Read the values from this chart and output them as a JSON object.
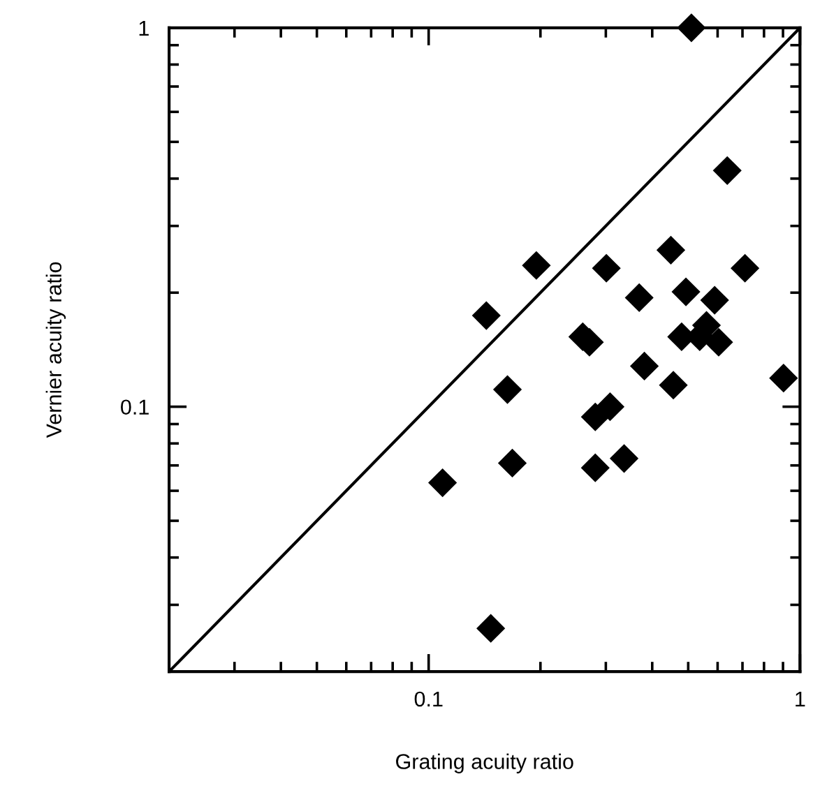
{
  "chart_data": {
    "type": "scatter",
    "xlabel": "Grating acuity ratio",
    "ylabel": "Vernier acuity ratio",
    "log": "xy",
    "xlim": [
      0.02,
      1
    ],
    "ylim": [
      0.02,
      1
    ],
    "xticks": [
      0.1,
      1
    ],
    "yticks": [
      0.1,
      1
    ],
    "grid": false,
    "legend": false,
    "marker": "diamond",
    "series": [
      {
        "type": "line",
        "color": "#000000",
        "x": [
          0.02,
          1
        ],
        "values": [
          0.02,
          1
        ],
        "marker": "none",
        "line_style": "solid"
      },
      {
        "color": "#000000",
        "x": [
          0.195,
          0.301,
          0.449,
          0.711,
          0.143,
          0.369,
          0.493,
          0.589,
          0.26,
          0.271,
          0.48,
          0.56,
          0.537,
          0.604,
          0.381,
          0.456,
          0.903,
          0.163,
          0.281,
          0.308,
          0.168,
          0.281,
          0.336,
          0.109,
          0.147,
          0.51,
          0.637
        ],
        "values": [
          0.236,
          0.232,
          0.259,
          0.232,
          0.174,
          0.194,
          0.201,
          0.191,
          0.153,
          0.148,
          0.153,
          0.164,
          0.153,
          0.148,
          0.128,
          0.114,
          0.119,
          0.111,
          0.094,
          0.1,
          0.071,
          0.069,
          0.073,
          0.063,
          0.026,
          1.0,
          0.42
        ]
      }
    ]
  }
}
